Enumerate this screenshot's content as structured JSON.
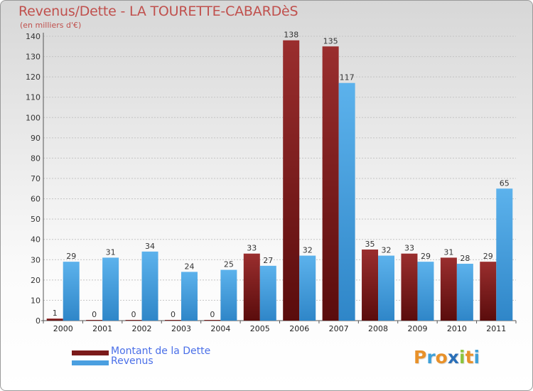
{
  "chart_data": {
    "type": "bar",
    "title": "Revenus/Dette - LA TOURETTE-CABARDèS",
    "subtitle": "(en milliers d'€)",
    "categories": [
      "2000",
      "2001",
      "2002",
      "2003",
      "2004",
      "2005",
      "2006",
      "2007",
      "2008",
      "2009",
      "2010",
      "2011"
    ],
    "series": [
      {
        "name": "Montant de la Dette",
        "color": "#7b1a1a",
        "values": [
          1,
          0,
          0,
          0,
          0,
          33,
          138,
          135,
          35,
          33,
          31,
          29
        ]
      },
      {
        "name": "Revenus",
        "color": "#4a9fe0",
        "values": [
          29,
          31,
          34,
          24,
          25,
          27,
          32,
          117,
          32,
          29,
          28,
          65
        ]
      }
    ],
    "ylim": [
      0,
      140
    ],
    "yticks": [
      0,
      10,
      20,
      30,
      40,
      50,
      60,
      70,
      80,
      90,
      100,
      110,
      120,
      130,
      140
    ],
    "grid": true,
    "legend": "bottom-left"
  },
  "logo": {
    "letters": [
      "P",
      "r",
      "o",
      "x",
      "i",
      "t",
      "i"
    ],
    "colors": [
      "#e8912a",
      "#3ea0d8",
      "#e8912a",
      "#2a6fb8",
      "#8cc43c",
      "#e8912a",
      "#3ea0d8"
    ]
  }
}
